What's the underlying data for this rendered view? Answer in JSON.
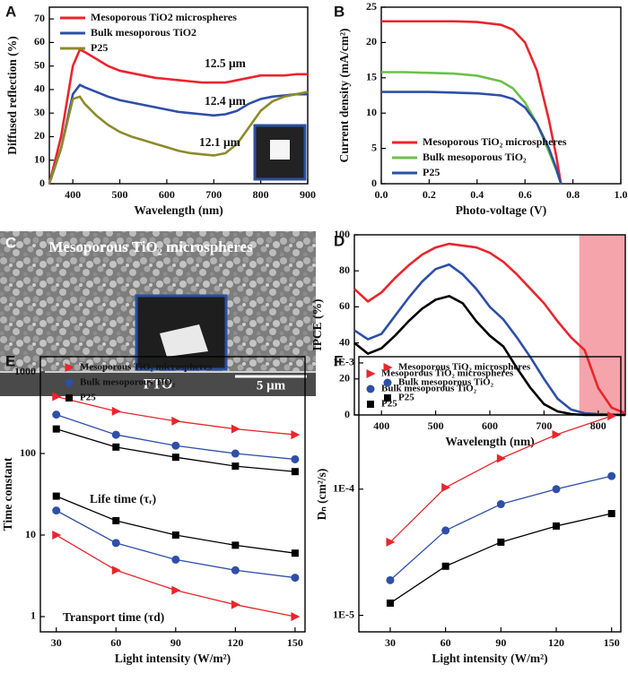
{
  "chart_data": [
    {
      "type": "line",
      "panel_label": "A",
      "xlabel": "Wavelength (nm)",
      "ylabel": "Diffused reflection (%)",
      "xlim": [
        350,
        900
      ],
      "ylim": [
        0,
        75
      ],
      "xticks": [
        400,
        500,
        600,
        700,
        800,
        900
      ],
      "yticks": [
        0,
        10,
        20,
        30,
        40,
        50,
        60,
        70
      ],
      "legend": "upper left",
      "annotations": [
        "12.5 μm",
        "12.4 μm",
        "12.1 μm"
      ],
      "x": [
        350,
        375,
        400,
        415,
        425,
        450,
        475,
        500,
        525,
        550,
        575,
        600,
        625,
        650,
        675,
        700,
        725,
        750,
        775,
        800,
        825,
        850,
        875,
        900
      ],
      "series": [
        {
          "name": "Mesoporous TiO2 microspheres",
          "color": "#e8262d",
          "values": [
            0,
            20,
            50,
            57,
            56,
            53,
            50,
            48,
            47,
            46,
            45,
            44.5,
            44,
            43.5,
            43,
            43,
            43,
            44,
            45,
            46,
            46,
            46,
            46.5,
            46.5
          ]
        },
        {
          "name": "Bulk mesoporous TiO2",
          "color": "#2e4fa8",
          "values": [
            0,
            15,
            38,
            42,
            41,
            39,
            37,
            35.5,
            34.5,
            33.5,
            32.5,
            31.5,
            30.5,
            30,
            29.5,
            29,
            29.5,
            31,
            34,
            36,
            37,
            37.5,
            38,
            38
          ]
        },
        {
          "name": "P25",
          "color": "#8b8b2b",
          "values": [
            0,
            15,
            36,
            37,
            34,
            29,
            25,
            22,
            20,
            18.5,
            17,
            15.5,
            14,
            13,
            12.5,
            12,
            13,
            17,
            24,
            31,
            35,
            37,
            38,
            39
          ]
        }
      ]
    },
    {
      "type": "line",
      "panel_label": "B",
      "xlabel": "Photo-voltage (V)",
      "ylabel": "Current density (mA/cm²)",
      "xlim": [
        0,
        1
      ],
      "ylim": [
        0,
        25
      ],
      "xticks": [
        {
          "value": 0,
          "label": "0.0"
        },
        0.2,
        0.4,
        0.6,
        0.8,
        {
          "value": 1,
          "label": "1.0"
        }
      ],
      "yticks": [
        0,
        5,
        10,
        15,
        20,
        25
      ],
      "legend": "lower left",
      "x": [
        0,
        0.1,
        0.2,
        0.3,
        0.4,
        0.5,
        0.55,
        0.6,
        0.65,
        0.7,
        0.73,
        0.75
      ],
      "series": [
        {
          "name": "Mesoporous TiO₂ microspheres",
          "color": "#e8262d",
          "values": [
            23,
            23,
            23,
            23,
            22.9,
            22.5,
            21.8,
            20,
            16,
            9,
            4,
            0
          ]
        },
        {
          "name": "Bulk mesoporous TiO₂",
          "color": "#6cc04a",
          "values": [
            15.8,
            15.8,
            15.7,
            15.6,
            15.3,
            14.5,
            13.5,
            11.5,
            8.5,
            4.5,
            2,
            0
          ]
        },
        {
          "name": "P25",
          "color": "#2e4fa8",
          "values": [
            13,
            13,
            13,
            12.9,
            12.8,
            12.5,
            12,
            10.8,
            8.5,
            5,
            2.2,
            0
          ]
        }
      ]
    },
    {
      "type": "image",
      "panel_label": "C",
      "title": "Mesoporous TiO₂ microspheres",
      "substrate": "FTO",
      "scale_bar": "5 μm"
    },
    {
      "type": "line",
      "panel_label": "D",
      "xlabel": "Wavelength (nm)",
      "ylabel": "IPCE (%)",
      "xlim": [
        350,
        850
      ],
      "ylim": [
        0,
        100
      ],
      "xticks": [
        400,
        500,
        600,
        700,
        800
      ],
      "yticks": [
        0,
        20,
        40,
        60,
        80,
        100
      ],
      "legend": "lower left",
      "highlight_range": [
        765,
        850
      ],
      "highlight_color": "#f4a4aa",
      "x": [
        350,
        375,
        400,
        425,
        450,
        475,
        500,
        525,
        550,
        575,
        600,
        625,
        650,
        675,
        700,
        725,
        750,
        775,
        800,
        825,
        850
      ],
      "series": [
        {
          "name": "Mesoporous TiO₂ microspheres",
          "color": "#e8262d",
          "marker": "triangle",
          "values": [
            70,
            63,
            68,
            76,
            83,
            89,
            93,
            95,
            94,
            93,
            90,
            85,
            78,
            70,
            62,
            52,
            43,
            36,
            15,
            4,
            1
          ]
        },
        {
          "name": "Bulk mesoporous TiO₂",
          "color": "#2e4fa8",
          "marker": "circle",
          "values": [
            47,
            42,
            45,
            55,
            65,
            74,
            81,
            83.5,
            78,
            70,
            60,
            53,
            43,
            32,
            20,
            9,
            3,
            1,
            0.5,
            0.2,
            0
          ]
        },
        {
          "name": "P25",
          "color": "#000000",
          "marker": "square",
          "values": [
            40,
            34,
            37,
            44,
            52,
            59,
            64,
            66,
            62,
            52,
            44,
            38,
            26,
            15,
            6,
            2,
            0.5,
            0,
            0,
            0,
            0
          ]
        }
      ]
    },
    {
      "type": "line",
      "panel_label": "E",
      "xlabel": "Light intensity (W/m²)",
      "ylabel": "Time constant",
      "xlim": [
        22,
        155
      ],
      "ylim": [
        0.65,
        1540
      ],
      "ylog": true,
      "xticks": [
        30,
        60,
        90,
        120,
        150
      ],
      "yticks": [
        1,
        10,
        100,
        1000
      ],
      "legend": "upper left",
      "show_markers": true,
      "annotations": [
        "Life time (τᵣ)",
        "Transport time (τd)"
      ],
      "x": [
        30,
        60,
        90,
        120,
        150
      ],
      "series": [
        {
          "name": "Mesoporous TiO₂ microspheres",
          "color": "#e8262d",
          "marker": "triangle",
          "life_time": [
            500,
            330,
            250,
            200,
            170
          ],
          "transport_time": [
            10,
            3.7,
            2.1,
            1.4,
            1
          ]
        },
        {
          "name": "Bulk mesoporous TiO₂",
          "color": "#2e4fa8",
          "marker": "circle",
          "life_time": [
            300,
            170,
            125,
            100,
            85
          ],
          "transport_time": [
            20,
            8,
            5,
            3.7,
            3
          ]
        },
        {
          "name": "P25",
          "color": "#000000",
          "marker": "square",
          "life_time": [
            200,
            120,
            90,
            70,
            60
          ],
          "transport_time": [
            30,
            15,
            10,
            7.5,
            6
          ]
        }
      ]
    },
    {
      "type": "line",
      "panel_label": "F",
      "xlabel": "Light intensity (W/m²)",
      "ylabel": "Dₙ (cm²/s)",
      "xlim": [
        13,
        155
      ],
      "ylim": [
        7.4e-06,
        0.00112
      ],
      "ylog": true,
      "xticks": [
        30,
        60,
        90,
        120,
        150
      ],
      "yticks": [
        {
          "value": 1e-05,
          "label": "1E-5"
        },
        {
          "value": 0.0001,
          "label": "1E-4"
        },
        {
          "value": 0.001,
          "label": "1E-3"
        }
      ],
      "legend": "upper left",
      "show_markers": true,
      "x": [
        30,
        60,
        90,
        120,
        150
      ],
      "series": [
        {
          "name": "Mesoporous TiO₂ microspheres",
          "color": "#e8262d",
          "marker": "triangle",
          "values": [
            3.8e-05,
            0.000103,
            0.000175,
            0.00027,
            0.00038
          ]
        },
        {
          "name": "Bulk mesoporous TiO₂",
          "color": "#2e4fa8",
          "marker": "circle",
          "values": [
            1.9e-05,
            4.7e-05,
            7.6e-05,
            0.0001,
            0.000127
          ]
        },
        {
          "name": "P25",
          "color": "#000000",
          "marker": "square",
          "values": [
            1.25e-05,
            2.45e-05,
            3.8e-05,
            5.1e-05,
            6.4e-05
          ]
        }
      ]
    }
  ]
}
